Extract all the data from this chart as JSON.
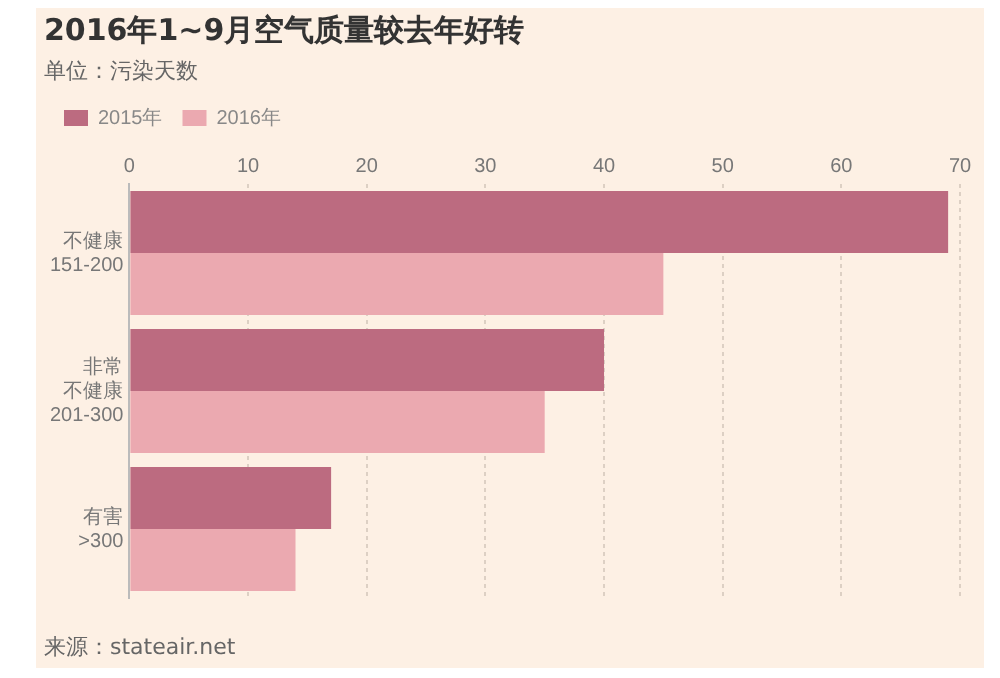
{
  "chart_data": {
    "type": "bar",
    "orientation": "horizontal",
    "title": "2016年1~9月空气质量较去年好转",
    "subtitle": "单位：污染天数",
    "categories": [
      "不健康\n151-200",
      "非常不健康\n201-300",
      "有害\n>300"
    ],
    "series": [
      {
        "name": "2015年",
        "color": "#bc6b80",
        "values": [
          69,
          40,
          17
        ]
      },
      {
        "name": "2016年",
        "color": "#eba9b0",
        "values": [
          45,
          35,
          14
        ]
      }
    ],
    "xlim": [
      0,
      70
    ],
    "xticks": [
      0,
      10,
      20,
      30,
      40,
      50,
      60,
      70
    ],
    "grid": "x",
    "legend": "top left",
    "annotations": [
      "来源：stateair.net"
    ]
  }
}
